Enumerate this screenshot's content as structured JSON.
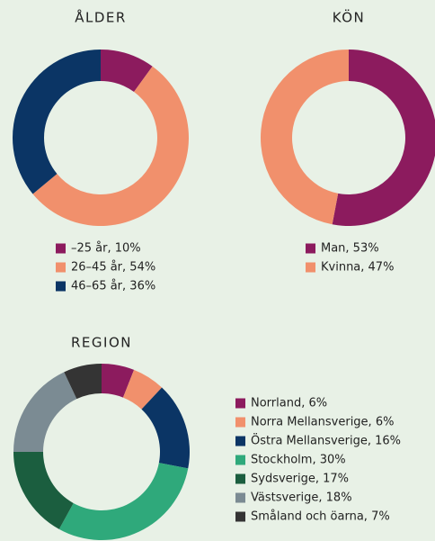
{
  "chart_data": [
    {
      "type": "donut",
      "title": "ÅLDER",
      "categories": [
        "–25 år, 10%",
        "26–45 år, 54%",
        "46–65 år, 36%"
      ],
      "values": [
        10,
        54,
        36
      ],
      "colors": [
        "#8c1b5e",
        "#f1906c",
        "#0b3565"
      ]
    },
    {
      "type": "donut",
      "title": "KÖN",
      "categories": [
        "Man, 53%",
        "Kvinna, 47%"
      ],
      "values": [
        53,
        47
      ],
      "colors": [
        "#8c1b5e",
        "#f1906c"
      ]
    },
    {
      "type": "donut",
      "title": "REGION",
      "categories": [
        "Norrland, 6%",
        "Norra Mellansverige, 6%",
        "Östra Mellansverige, 16%",
        "Stockholm, 30%",
        "Sydsverige, 17%",
        "Västsverige, 18%",
        "Småland och öarna, 7%"
      ],
      "values": [
        6,
        6,
        16,
        30,
        17,
        18,
        7
      ],
      "colors": [
        "#8c1b5e",
        "#f1906c",
        "#0b3565",
        "#2fa97b",
        "#1b5e3f",
        "#7b8b93",
        "#343434"
      ]
    }
  ]
}
